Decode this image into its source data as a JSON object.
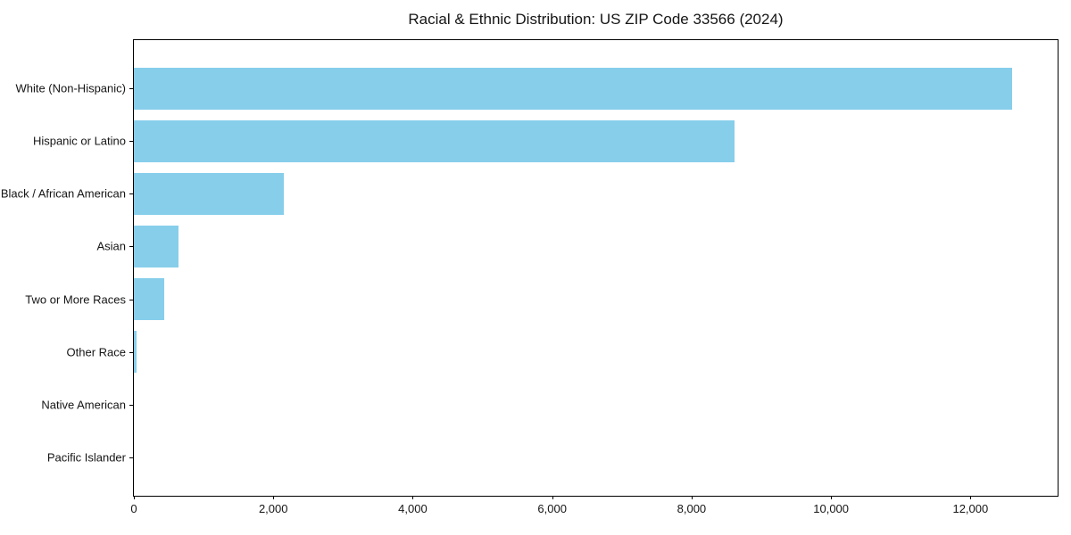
{
  "chart_data": {
    "type": "bar",
    "orientation": "horizontal",
    "title": "Racial & Ethnic Distribution: US ZIP Code 33566 (2024)",
    "categories": [
      "White (Non-Hispanic)",
      "Hispanic or Latino",
      "Black / African American",
      "Asian",
      "Two or More Races",
      "Other Race",
      "Native American",
      "Pacific Islander"
    ],
    "values": [
      12600,
      8620,
      2150,
      640,
      435,
      40,
      0,
      0
    ],
    "xlabel": "",
    "ylabel": "",
    "xlim": [
      0,
      13250
    ],
    "xticks": [
      0,
      2000,
      4000,
      6000,
      8000,
      10000,
      12000
    ],
    "xtick_labels": [
      "0",
      "2,000",
      "4,000",
      "6,000",
      "8,000",
      "10,000",
      "12,000"
    ],
    "bar_color": "#87CEEB",
    "grid": false,
    "legend_position": "none"
  }
}
